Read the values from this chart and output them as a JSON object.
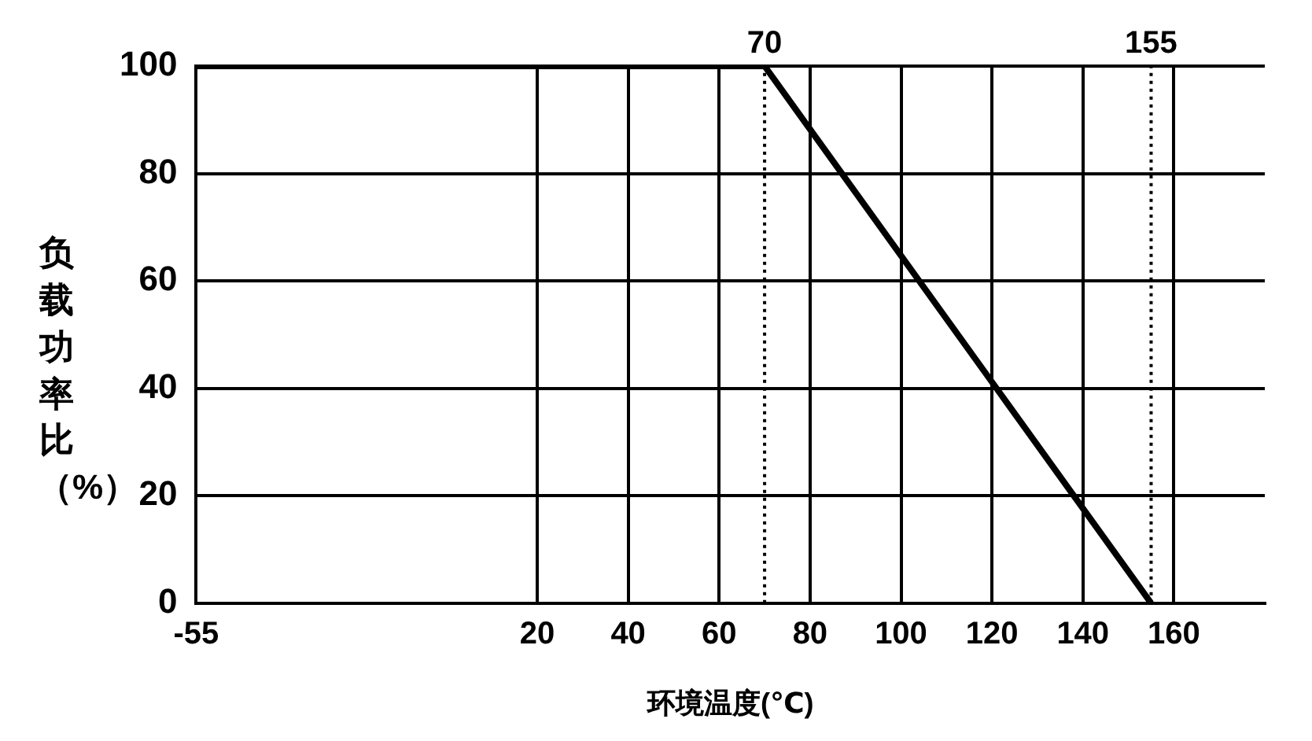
{
  "chart_data": {
    "type": "line",
    "xlabel": "环境温度(℃)",
    "ylabel": "负载功率比（%）",
    "x": [
      -55,
      70,
      155
    ],
    "series": [
      {
        "color": "#000000",
        "values": [
          100,
          100,
          0
        ]
      }
    ],
    "xlim": [
      -55,
      180
    ],
    "xticks": [
      -55,
      20,
      40,
      60,
      80,
      100,
      120,
      140,
      160
    ],
    "ylim": [
      0,
      100
    ],
    "yticks": [
      0,
      20,
      40,
      60,
      80,
      100
    ],
    "grid": true,
    "legend": false,
    "marker": "none",
    "line_style": "solid",
    "ref_lines": [
      {
        "axis": "x",
        "value": 70,
        "label": "70",
        "color": "#000000",
        "line_style": "dotted"
      },
      {
        "axis": "x",
        "value": 155,
        "label": "155",
        "color": "#000000",
        "line_style": "dotted"
      }
    ]
  }
}
